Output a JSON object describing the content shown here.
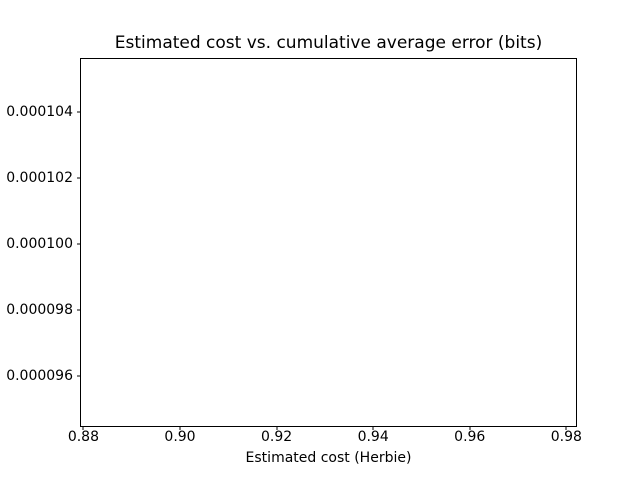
{
  "chart_data": {
    "type": "scatter",
    "title": "Estimated cost vs. cumulative average error (bits)",
    "xlabel": "Estimated cost (Herbie)",
    "ylabel": "",
    "xlim": [
      0.8795,
      0.982
    ],
    "ylim": [
      9.45e-05,
      0.0001056
    ],
    "xticks": [
      0.88,
      0.9,
      0.92,
      0.94,
      0.96,
      0.98
    ],
    "xtick_labels": [
      "0.88",
      "0.90",
      "0.92",
      "0.94",
      "0.96",
      "0.98"
    ],
    "yticks": [
      9.6e-05,
      9.8e-05,
      0.0001,
      0.000102,
      0.000104
    ],
    "ytick_labels": [
      "0.000096",
      "0.000098",
      "0.000100",
      "0.000102",
      "0.000104"
    ],
    "grid": false,
    "legend": null,
    "points": [],
    "background": "#ffffff",
    "frame_color": "#000000",
    "text_color": "#000000"
  }
}
